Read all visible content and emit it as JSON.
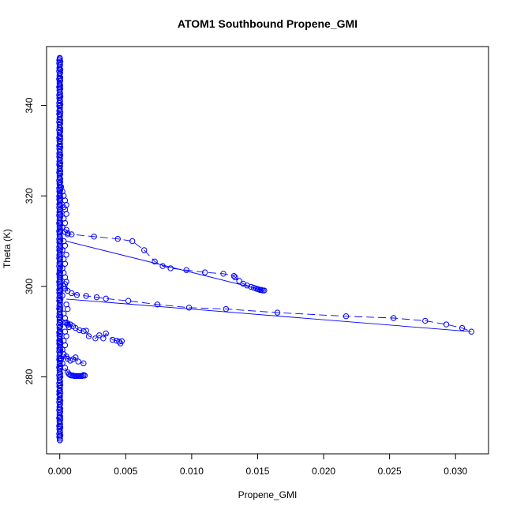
{
  "chart_data": {
    "type": "scatter",
    "title": "ATOM1 Southbound Propene_GMI",
    "xlabel": "Propene_GMI",
    "ylabel": "Theta (K)",
    "xlim": [
      -0.001,
      0.0325
    ],
    "ylim": [
      263,
      353
    ],
    "xticks": [
      0.0,
      0.005,
      0.01,
      0.015,
      0.02,
      0.025,
      0.03
    ],
    "xtick_labels": [
      "0.000",
      "0.005",
      "0.010",
      "0.015",
      "0.020",
      "0.025",
      "0.030"
    ],
    "yticks": [
      280,
      300,
      320,
      340
    ],
    "ytick_labels": [
      "280",
      "300",
      "320",
      "340"
    ],
    "grid": false,
    "legend": "none",
    "marker_color": "#0000ff",
    "series": [
      {
        "mode": "points",
        "x": [
          0.0,
          0.0,
          0.0,
          0.0,
          0.0,
          0.0,
          0.0,
          0.0,
          0.0,
          0.0,
          0.0,
          0.0,
          0.0,
          0.0,
          0.0,
          0.0,
          0.0,
          0.0,
          0.0,
          0.0,
          0.0,
          0.0,
          0.0,
          0.0,
          0.0,
          0.0,
          0.0,
          0.0,
          0.0,
          0.0,
          0.0,
          0.0,
          0.0,
          0.0,
          0.0,
          0.0,
          0.0,
          0.0,
          0.0,
          0.0,
          0.0,
          0.0,
          0.0,
          0.0,
          0.0,
          0.0,
          0.0,
          0.0,
          0.0,
          0.0,
          0.0,
          0.0,
          0.0,
          0.0,
          0.0,
          0.0,
          0.0,
          0.0,
          0.0,
          0.0,
          0.0,
          0.0,
          0.0,
          0.0,
          0.0,
          0.0,
          0.0,
          0.0,
          0.0,
          0.0,
          0.0,
          0.0,
          0.0,
          0.0,
          0.0,
          0.0,
          0.0,
          0.0,
          0.0,
          0.0,
          0.0,
          0.0,
          0.0,
          0.0,
          0.0,
          0.0,
          0.0,
          0.0,
          0.0,
          0.0,
          0.0
        ],
        "y": [
          350,
          349,
          348,
          347,
          346,
          345,
          344,
          343,
          342,
          341,
          340,
          339,
          338,
          337,
          336,
          335,
          334,
          333,
          332,
          331,
          330,
          329,
          328,
          327,
          326,
          325,
          324,
          323,
          322,
          321,
          320,
          319,
          318,
          317,
          316,
          315,
          314,
          313,
          312,
          311,
          310,
          309,
          308,
          307,
          306,
          305,
          304,
          303,
          302,
          301,
          300,
          299,
          298,
          297,
          296,
          295,
          294,
          293,
          292,
          291,
          290,
          289,
          288,
          287,
          286,
          285,
          284,
          283,
          282,
          281,
          280,
          279,
          278,
          277,
          276,
          275,
          274,
          273,
          272,
          271,
          270,
          269,
          268,
          267,
          266,
          350.5,
          266,
          344.5,
          320.5,
          302.5,
          287.5
        ]
      },
      {
        "mode": "points",
        "x": [
          0.0001,
          0.0002,
          0.0003,
          0.0004,
          0.0005,
          0.0003,
          0.0004,
          0.0005,
          0.0003,
          0.0004,
          0.0002,
          0.0005,
          0.0006,
          0.0003,
          0.0004,
          0.0002,
          0.0005,
          0.0003,
          0.0004,
          0.0002,
          0.0003,
          0.0004,
          0.0005,
          0.0003,
          0.0004,
          0.0002,
          0.0005,
          0.0006,
          0.0003,
          0.0004,
          0.0005,
          0.0006,
          0.0007,
          0.0004,
          0.0005,
          0.0003,
          0.0004,
          0.0002,
          0.0003,
          0.0001,
          0.0002
        ],
        "y": [
          322,
          321,
          320,
          319,
          318,
          317.5,
          317,
          316,
          315,
          314,
          313,
          312.5,
          311.5,
          310,
          309,
          308,
          307,
          306,
          305,
          304,
          303,
          302,
          301,
          300,
          299.5,
          298,
          296,
          295,
          294,
          293,
          292,
          291.5,
          291,
          290,
          289,
          288,
          287,
          286,
          285,
          284,
          283
        ]
      },
      {
        "mode": "lines+points",
        "line": "dashed",
        "x": [
          0.0004,
          0.0006,
          0.0009,
          0.0026,
          0.0044,
          0.0055,
          0.0064,
          0.0072,
          0.0078,
          0.0084,
          0.0096,
          0.011,
          0.0124,
          0.0132,
          0.0133,
          0.0136,
          0.0139,
          0.0142,
          0.0145,
          0.0147,
          0.0149,
          0.015,
          0.0151,
          0.0152,
          0.0153,
          0.0154,
          0.0155
        ],
        "y": [
          312,
          311.8,
          311.5,
          311,
          310.5,
          310,
          308,
          305.5,
          304.5,
          304,
          303.6,
          303.1,
          302.8,
          302.3,
          302,
          301.2,
          300.6,
          300.2,
          299.9,
          299.7,
          299.5,
          299.4,
          299.3,
          299.2,
          299.2,
          299.1,
          299.1
        ]
      },
      {
        "mode": "lines",
        "line": "solid",
        "x": [
          0.0005,
          0.0155
        ],
        "y": [
          310,
          299.1
        ]
      },
      {
        "mode": "lines+points",
        "line": "dashed",
        "x": [
          0.0004,
          0.0006,
          0.0009,
          0.0013,
          0.002,
          0.0028,
          0.0035,
          0.0052,
          0.0074,
          0.0098,
          0.0126,
          0.0165,
          0.0217,
          0.0253,
          0.0277,
          0.0293,
          0.0305,
          0.0312
        ],
        "y": [
          300.5,
          299,
          298.5,
          298.1,
          297.9,
          297.6,
          297.3,
          296.8,
          296,
          295.3,
          295,
          294.2,
          293.4,
          293,
          292.4,
          291.6,
          290.8,
          290
        ]
      },
      {
        "mode": "lines",
        "line": "solid",
        "x": [
          0.0005,
          0.0312
        ],
        "y": [
          297.2,
          290
        ]
      },
      {
        "mode": "lines+points",
        "line": "dashed",
        "x": [
          0.0004,
          0.0006,
          0.0008,
          0.001,
          0.0012,
          0.0015,
          0.0018,
          0.002,
          0.0022,
          0.0027,
          0.003,
          0.0033,
          0.0035,
          0.004,
          0.0043,
          0.0045,
          0.0046,
          0.0047
        ],
        "y": [
          292,
          291.8,
          291.6,
          291.2,
          290.8,
          290.3,
          290.1,
          290.2,
          289,
          288.5,
          289.2,
          288.5,
          289.6,
          288.2,
          288,
          287.8,
          287.4,
          287.9
        ]
      },
      {
        "mode": "lines+points",
        "line": "dashed",
        "x": [
          0.0003,
          0.0005,
          0.0006,
          0.0008,
          0.001,
          0.0012,
          0.0014,
          0.0018
        ],
        "y": [
          285,
          284.5,
          284,
          283.6,
          283.9,
          284.3,
          283.4,
          283
        ]
      },
      {
        "mode": "lines+points",
        "line": "dashed",
        "x": [
          0.0004,
          0.0006,
          0.0007,
          0.0008,
          0.0009,
          0.001,
          0.0011,
          0.0012,
          0.0013,
          0.0014,
          0.0015,
          0.0016,
          0.0017,
          0.0018,
          0.0018,
          0.0019
        ],
        "y": [
          282,
          281,
          280.6,
          280.4,
          280.3,
          280.3,
          280.2,
          280.2,
          280.2,
          280.2,
          280.2,
          280.2,
          280.2,
          280.3,
          280.4,
          280.3
        ]
      }
    ]
  }
}
